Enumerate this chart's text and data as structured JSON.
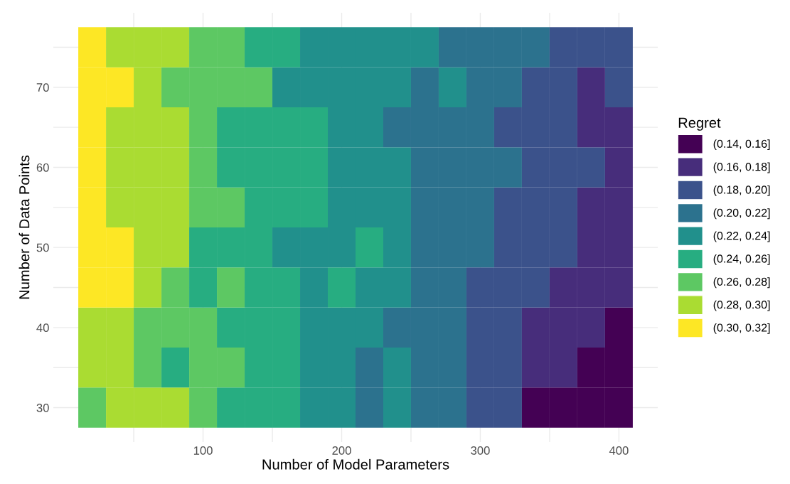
{
  "chart_data": {
    "type": "heatmap",
    "xlabel": "Number of Model Parameters",
    "ylabel": "Number of Data Points",
    "legend_title": "Regret",
    "grid": true,
    "x": [
      20,
      40,
      60,
      80,
      100,
      120,
      140,
      160,
      180,
      200,
      220,
      240,
      260,
      280,
      300,
      320,
      340,
      360,
      380,
      400
    ],
    "y": [
      30,
      35,
      40,
      45,
      50,
      55,
      60,
      65,
      70,
      75
    ],
    "cells": [
      [
        0.27,
        0.29,
        0.29,
        0.29,
        0.27,
        0.25,
        0.25,
        0.25,
        0.23,
        0.23,
        0.21,
        0.23,
        0.21,
        0.21,
        0.19,
        0.19,
        0.15,
        0.15,
        0.15,
        0.15
      ],
      [
        0.29,
        0.29,
        0.27,
        0.25,
        0.27,
        0.27,
        0.25,
        0.25,
        0.23,
        0.23,
        0.21,
        0.23,
        0.21,
        0.21,
        0.19,
        0.19,
        0.17,
        0.17,
        0.15,
        0.15
      ],
      [
        0.29,
        0.29,
        0.27,
        0.27,
        0.27,
        0.25,
        0.25,
        0.25,
        0.23,
        0.23,
        0.23,
        0.21,
        0.21,
        0.21,
        0.19,
        0.19,
        0.17,
        0.17,
        0.17,
        0.15
      ],
      [
        0.31,
        0.31,
        0.29,
        0.27,
        0.25,
        0.27,
        0.25,
        0.25,
        0.23,
        0.25,
        0.23,
        0.23,
        0.21,
        0.21,
        0.19,
        0.19,
        0.19,
        0.17,
        0.17,
        0.17
      ],
      [
        0.31,
        0.31,
        0.29,
        0.29,
        0.25,
        0.25,
        0.25,
        0.23,
        0.23,
        0.23,
        0.25,
        0.23,
        0.21,
        0.21,
        0.21,
        0.19,
        0.19,
        0.19,
        0.17,
        0.17
      ],
      [
        0.31,
        0.29,
        0.29,
        0.29,
        0.27,
        0.27,
        0.25,
        0.25,
        0.25,
        0.23,
        0.23,
        0.23,
        0.21,
        0.21,
        0.21,
        0.19,
        0.19,
        0.19,
        0.17,
        0.17
      ],
      [
        0.31,
        0.29,
        0.29,
        0.29,
        0.27,
        0.25,
        0.25,
        0.25,
        0.25,
        0.23,
        0.23,
        0.23,
        0.21,
        0.21,
        0.21,
        0.21,
        0.19,
        0.19,
        0.19,
        0.17
      ],
      [
        0.31,
        0.29,
        0.29,
        0.29,
        0.27,
        0.25,
        0.25,
        0.25,
        0.25,
        0.23,
        0.23,
        0.21,
        0.21,
        0.21,
        0.21,
        0.19,
        0.19,
        0.19,
        0.17,
        0.17
      ],
      [
        0.31,
        0.31,
        0.29,
        0.27,
        0.27,
        0.27,
        0.27,
        0.23,
        0.23,
        0.23,
        0.23,
        0.23,
        0.21,
        0.23,
        0.21,
        0.21,
        0.19,
        0.19,
        0.17,
        0.19
      ],
      [
        0.31,
        0.29,
        0.29,
        0.29,
        0.27,
        0.27,
        0.25,
        0.25,
        0.23,
        0.23,
        0.23,
        0.23,
        0.23,
        0.21,
        0.21,
        0.21,
        0.21,
        0.19,
        0.19,
        0.19
      ]
    ],
    "clim": [
      0.14,
      0.32
    ],
    "colors": [
      "#440154",
      "#472d7b",
      "#3b528b",
      "#2c728e",
      "#21908c",
      "#27ad81",
      "#5dc863",
      "#aadc32",
      "#fde725"
    ],
    "cticks": [
      {
        "value": 0.15,
        "label": "(0.14, 0.16]"
      },
      {
        "value": 0.17,
        "label": "(0.16, 0.18]"
      },
      {
        "value": 0.19,
        "label": "(0.18, 0.20]"
      },
      {
        "value": 0.21,
        "label": "(0.20, 0.22]"
      },
      {
        "value": 0.23,
        "label": "(0.22, 0.24]"
      },
      {
        "value": 0.25,
        "label": "(0.24, 0.26]"
      },
      {
        "value": 0.27,
        "label": "(0.26, 0.28]"
      },
      {
        "value": 0.29,
        "label": "(0.28, 0.30]"
      },
      {
        "value": 0.31,
        "label": "(0.30, 0.32]"
      }
    ],
    "xlim": [
      -8,
      428
    ],
    "ylim": [
      25.7,
      79.3
    ],
    "xticks": [
      {
        "value": 50,
        "label": null
      },
      100,
      {
        "value": 150,
        "label": null
      },
      200,
      {
        "value": 250,
        "label": null
      },
      300,
      {
        "value": 350,
        "label": null
      },
      400
    ],
    "yticks": [
      30,
      {
        "value": 35,
        "label": null
      },
      40,
      {
        "value": 45,
        "label": null
      },
      50,
      {
        "value": 55,
        "label": null
      },
      60,
      {
        "value": 65,
        "label": null
      },
      70,
      {
        "value": 75,
        "label": null
      }
    ]
  }
}
